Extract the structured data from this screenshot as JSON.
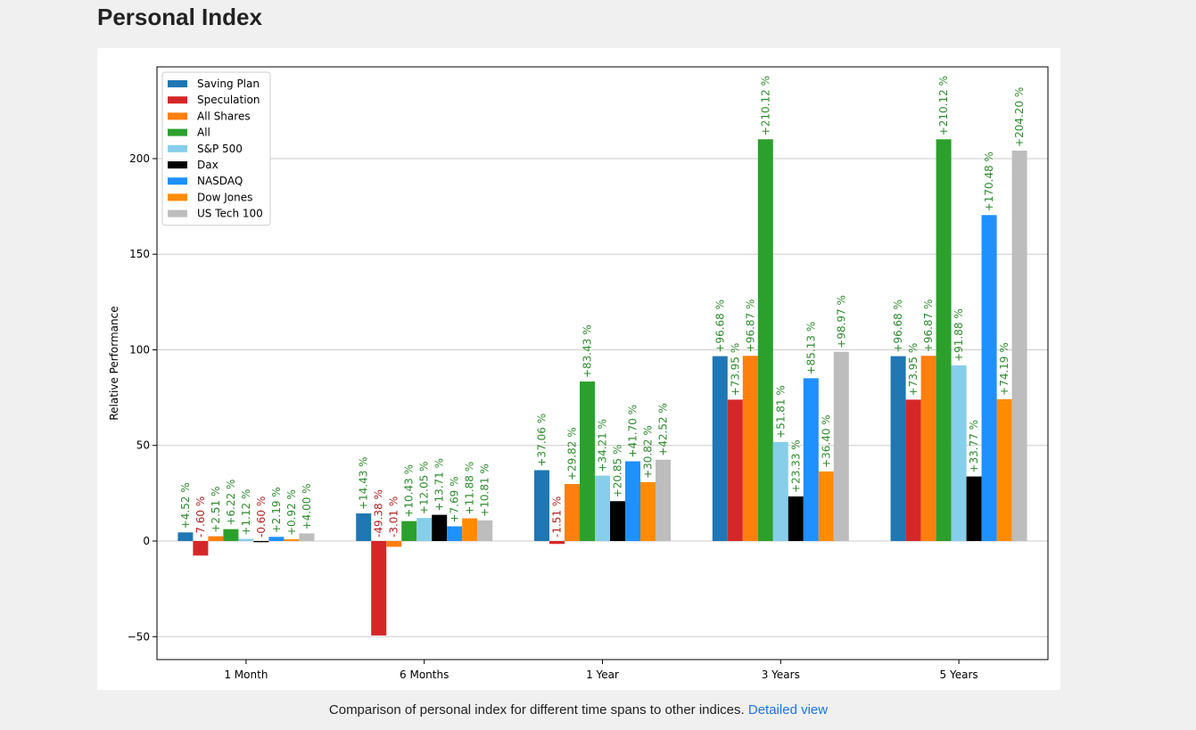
{
  "page": {
    "title": "Personal Index",
    "caption_text": "Comparison of personal index for different time spans to other indices.",
    "link_text": "Detailed view"
  },
  "colors": {
    "positive_label": "#2e8b2e",
    "negative_label": "#b22222",
    "grid": "#cccccc",
    "link": "#1a73e8"
  },
  "chart_data": {
    "type": "bar",
    "categories": [
      "1 Month",
      "6 Months",
      "1 Year",
      "3 Years",
      "5 Years"
    ],
    "ylabel": "Relative Performance",
    "xlabel": "",
    "ylim": [
      -62,
      248
    ],
    "yticks": [
      -50,
      0,
      50,
      100,
      150,
      200
    ],
    "grid": "horizontal",
    "legend_position": "top-left",
    "series": [
      {
        "name": "Saving Plan",
        "color": "#1f77b4",
        "values": [
          4.52,
          14.43,
          37.06,
          96.68,
          96.68
        ],
        "labels": [
          "+4.52 %",
          "+14.43 %",
          "+37.06 %",
          "+96.68 %",
          "+96.68 %"
        ]
      },
      {
        "name": "Speculation",
        "color": "#d62728",
        "values": [
          -7.6,
          -49.38,
          -1.51,
          73.95,
          73.95
        ],
        "labels": [
          "-7.60 %",
          "-49.38 %",
          "-1.51 %",
          "+73.95 %",
          "+73.95 %"
        ]
      },
      {
        "name": "All Shares",
        "color": "#ff7f0e",
        "values": [
          2.51,
          -3.01,
          29.82,
          96.87,
          96.87
        ],
        "labels": [
          "+2.51 %",
          "-3.01 %",
          "+29.82 %",
          "+96.87 %",
          "+96.87 %"
        ]
      },
      {
        "name": "All",
        "color": "#2ca02c",
        "values": [
          6.22,
          10.43,
          83.43,
          210.12,
          210.12
        ],
        "labels": [
          "+6.22 %",
          "+10.43 %",
          "+83.43 %",
          "+210.12 %",
          "+210.12 %"
        ]
      },
      {
        "name": "S&P 500",
        "color": "#87ceeb",
        "values": [
          1.12,
          12.05,
          34.21,
          51.81,
          91.88
        ],
        "labels": [
          "+1.12 %",
          "+12.05 %",
          "+34.21 %",
          "+51.81 %",
          "+91.88 %"
        ]
      },
      {
        "name": "Dax",
        "color": "#000000",
        "values": [
          -0.6,
          13.71,
          20.85,
          23.33,
          33.77
        ],
        "labels": [
          "-0.60 %",
          "+13.71 %",
          "+20.85 %",
          "+23.33 %",
          "+33.77 %"
        ]
      },
      {
        "name": "NASDAQ",
        "color": "#1e90ff",
        "values": [
          2.19,
          7.69,
          41.7,
          85.13,
          170.48
        ],
        "labels": [
          "+2.19 %",
          "+7.69 %",
          "+41.70 %",
          "+85.13 %",
          "+170.48 %"
        ]
      },
      {
        "name": "Dow Jones",
        "color": "#ff8c00",
        "values": [
          0.92,
          11.88,
          30.82,
          36.4,
          74.19
        ],
        "labels": [
          "+0.92 %",
          "+11.88 %",
          "+30.82 %",
          "+36.40 %",
          "+74.19 %"
        ]
      },
      {
        "name": "US Tech 100",
        "color": "#bdbdbd",
        "values": [
          4.0,
          10.81,
          42.52,
          98.97,
          204.2
        ],
        "labels": [
          "+4.00 %",
          "+10.81 %",
          "+42.52 %",
          "+98.97 %",
          "+204.20 %"
        ]
      }
    ]
  }
}
